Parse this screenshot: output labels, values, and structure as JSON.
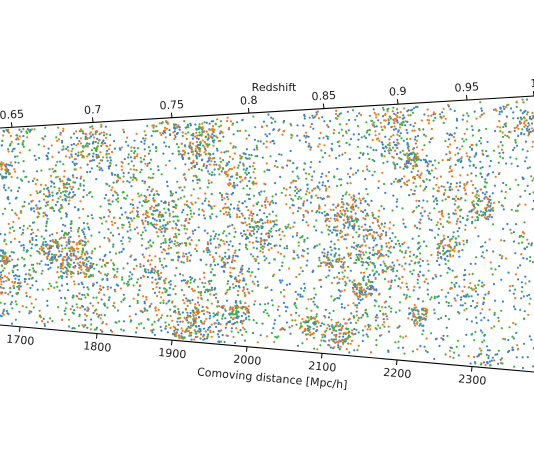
{
  "chart_data": {
    "type": "scatter",
    "title": "",
    "top_axis": {
      "label": "Redshift",
      "ticks": [
        "0.65",
        "0.7",
        "0.75",
        "0.8",
        "0.85",
        "0.9",
        "0.95",
        "1"
      ]
    },
    "bottom_axis": {
      "label": "Comoving distance [Mpc/h]",
      "ticks": [
        "1700",
        "1800",
        "1900",
        "2000",
        "2100",
        "2200",
        "2300"
      ]
    },
    "xlim": [
      1640,
      2420
    ],
    "series": [
      {
        "color": "#3b82c4",
        "count": 2600
      },
      {
        "color": "#f07a1e",
        "count": 1900
      },
      {
        "color": "#3cb43c",
        "count": 1400
      }
    ]
  }
}
